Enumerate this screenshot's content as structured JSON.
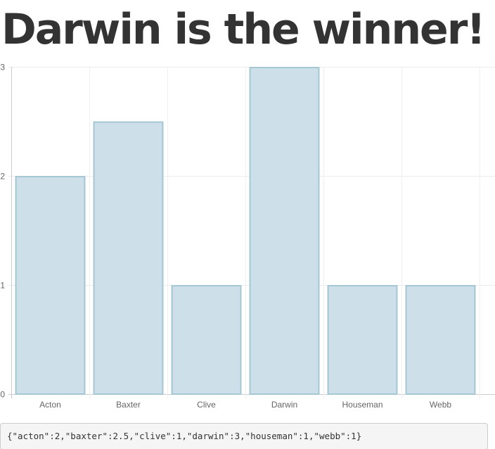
{
  "page": {
    "title": "Darwin is the winner!"
  },
  "chart_data": {
    "type": "bar",
    "categories": [
      "Acton",
      "Baxter",
      "Clive",
      "Darwin",
      "Houseman",
      "Webb"
    ],
    "values": [
      2,
      2.5,
      1,
      3,
      1,
      1
    ],
    "title": "",
    "xlabel": "",
    "ylabel": "",
    "ylim": [
      0,
      3
    ],
    "yticks": [
      "0",
      "1",
      "2",
      "3"
    ],
    "grid": true,
    "legend": "none",
    "bar_fill": "#cddfe8",
    "bar_stroke": "#a5c6d3"
  },
  "raw_json": {
    "text": "{\"acton\":2,\"baxter\":2.5,\"clive\":1,\"darwin\":3,\"houseman\":1,\"webb\":1}"
  }
}
